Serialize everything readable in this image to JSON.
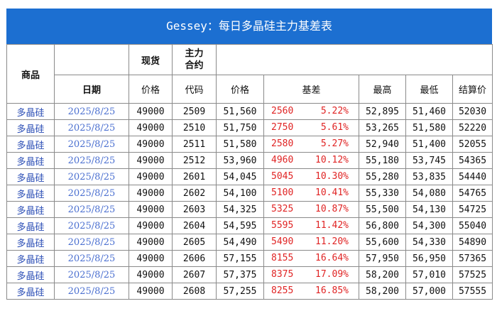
{
  "title": "Gessey：每日多晶硅主力基差表",
  "header": {
    "product": "商品",
    "spot": "现货",
    "main_contract": "主力\n合约",
    "date": "日期",
    "price": "价格",
    "code": "代码",
    "futures_price": "价格",
    "basis": "基差",
    "high": "最高",
    "low": "最低",
    "settle": "结算价"
  },
  "rows": [
    {
      "product": "多晶硅",
      "date": "2025/8/25",
      "spot": "49000",
      "code": "2509",
      "price": "51,560",
      "basis": "2560",
      "pct": "5.22%",
      "high": "52,895",
      "low": "51,460",
      "settle": "52030"
    },
    {
      "product": "多晶硅",
      "date": "2025/8/25",
      "spot": "49000",
      "code": "2510",
      "price": "51,750",
      "basis": "2750",
      "pct": "5.61%",
      "high": "53,265",
      "low": "51,580",
      "settle": "52220"
    },
    {
      "product": "多晶硅",
      "date": "2025/8/25",
      "spot": "49000",
      "code": "2511",
      "price": "51,580",
      "basis": "2580",
      "pct": "5.27%",
      "high": "52,940",
      "low": "51,400",
      "settle": "52055"
    },
    {
      "product": "多晶硅",
      "date": "2025/8/25",
      "spot": "49000",
      "code": "2512",
      "price": "53,960",
      "basis": "4960",
      "pct": "10.12%",
      "high": "55,180",
      "low": "53,745",
      "settle": "54365"
    },
    {
      "product": "多晶硅",
      "date": "2025/8/25",
      "spot": "49000",
      "code": "2601",
      "price": "54,045",
      "basis": "5045",
      "pct": "10.30%",
      "high": "55,280",
      "low": "53,835",
      "settle": "54440"
    },
    {
      "product": "多晶硅",
      "date": "2025/8/25",
      "spot": "49000",
      "code": "2602",
      "price": "54,100",
      "basis": "5100",
      "pct": "10.41%",
      "high": "55,330",
      "low": "54,080",
      "settle": "54765"
    },
    {
      "product": "多晶硅",
      "date": "2025/8/25",
      "spot": "49000",
      "code": "2603",
      "price": "54,325",
      "basis": "5325",
      "pct": "10.87%",
      "high": "55,500",
      "low": "54,130",
      "settle": "54725"
    },
    {
      "product": "多晶硅",
      "date": "2025/8/25",
      "spot": "49000",
      "code": "2604",
      "price": "54,595",
      "basis": "5595",
      "pct": "11.42%",
      "high": "56,800",
      "low": "54,300",
      "settle": "55040"
    },
    {
      "product": "多晶硅",
      "date": "2025/8/25",
      "spot": "49000",
      "code": "2605",
      "price": "54,490",
      "basis": "5490",
      "pct": "11.20%",
      "high": "55,600",
      "low": "54,330",
      "settle": "54890"
    },
    {
      "product": "多晶硅",
      "date": "2025/8/25",
      "spot": "49000",
      "code": "2606",
      "price": "57,155",
      "basis": "8155",
      "pct": "16.64%",
      "high": "57,950",
      "low": "56,950",
      "settle": "57365"
    },
    {
      "product": "多晶硅",
      "date": "2025/8/25",
      "spot": "49000",
      "code": "2607",
      "price": "57,375",
      "basis": "8375",
      "pct": "17.09%",
      "high": "58,200",
      "low": "57,010",
      "settle": "57525"
    },
    {
      "product": "多晶硅",
      "date": "2025/8/25",
      "spot": "49000",
      "code": "2608",
      "price": "57,255",
      "basis": "8255",
      "pct": "16.85%",
      "high": "58,200",
      "low": "57,000",
      "settle": "57555"
    }
  ]
}
